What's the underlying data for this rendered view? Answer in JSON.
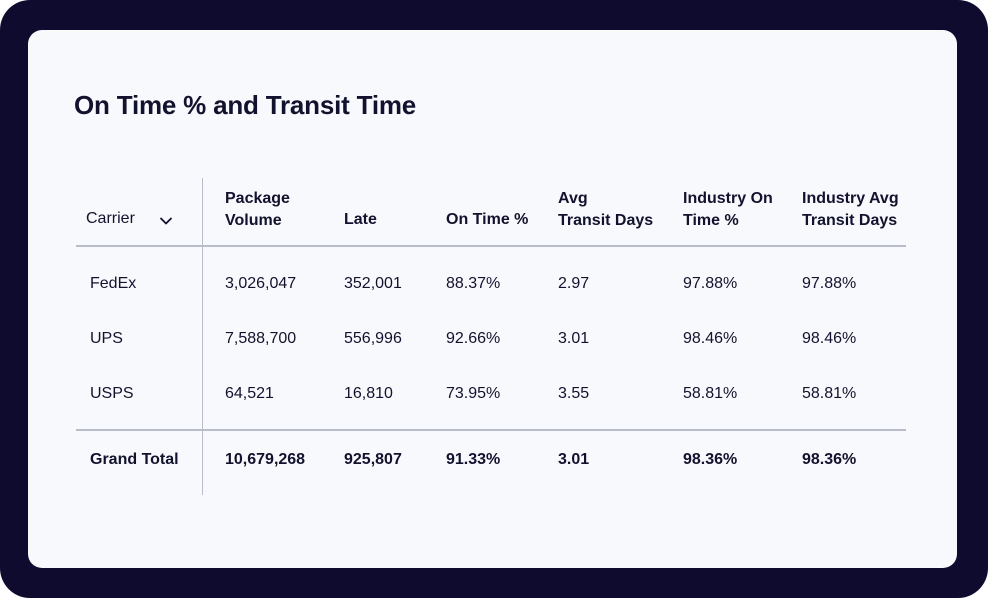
{
  "title": "On Time % and Transit Time",
  "columns": [
    "Carrier",
    "Package Volume",
    "Late",
    "On Time %",
    "Avg Transit Days",
    "Industry On Time %",
    "Industry Avg Transit Days"
  ],
  "header_lines": [
    [
      "Carrier"
    ],
    [
      "Package",
      "Volume"
    ],
    [
      "Late"
    ],
    [
      "On Time %"
    ],
    [
      "Avg",
      "Transit Days"
    ],
    [
      "Industry On",
      "Time %"
    ],
    [
      "Industry Avg",
      "Transit Days"
    ]
  ],
  "rows": [
    [
      "FedEx",
      "3,026,047",
      "352,001",
      "88.37%",
      "2.97",
      "97.88%",
      "97.88%"
    ],
    [
      "UPS",
      "7,588,700",
      "556,996",
      "92.66%",
      "3.01",
      "98.46%",
      "98.46%"
    ],
    [
      "USPS",
      "64,521",
      "16,810",
      "73.95%",
      "3.55",
      "58.81%",
      "58.81%"
    ]
  ],
  "grand_total": [
    "Grand Total",
    "10,679,268",
    "925,807",
    "91.33%",
    "3.01",
    "98.36%",
    "98.36%"
  ],
  "sort_icon": "chevron-down-icon",
  "colors": {
    "frame": "#0f0b2e",
    "card": "#f8f9fc",
    "text": "#12122e",
    "divider": "#b9bccb"
  }
}
